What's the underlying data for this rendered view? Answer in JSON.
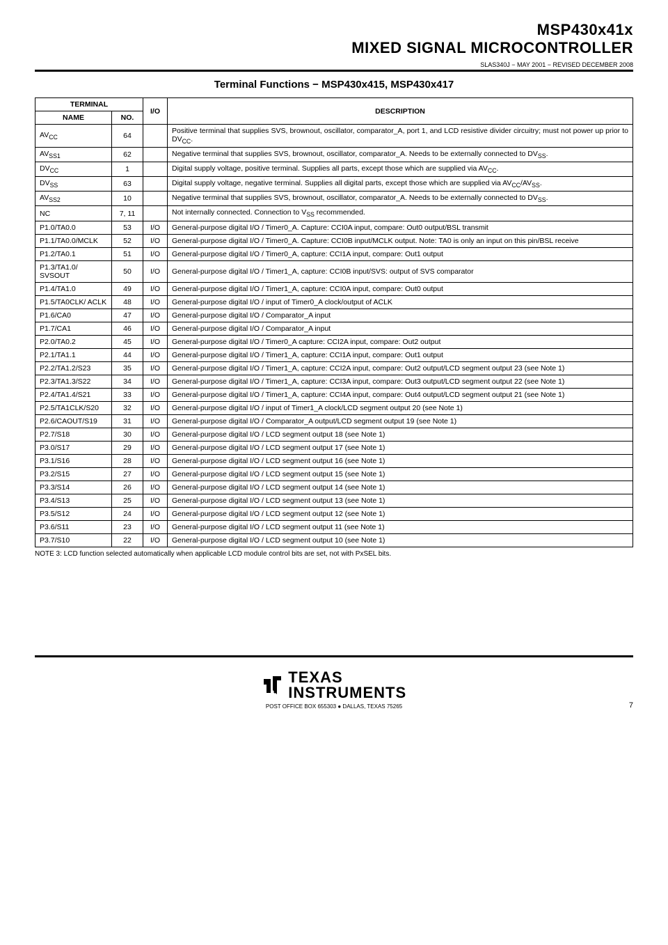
{
  "header": {
    "line1": "MSP430x41x",
    "line2": "MIXED SIGNAL MICROCONTROLLER",
    "revision": "SLAS340J − MAY 2001 − REVISED DECEMBER 2008"
  },
  "sectionTitle": "Terminal Functions − MSP430x415, MSP430x417",
  "tableHeaders": {
    "terminalGroup": "TERMINAL",
    "name": "NAME",
    "no": "NO.",
    "io": "I/O",
    "description": "DESCRIPTION"
  },
  "rows": [
    {
      "name": "AV<sub>CC</sub>",
      "no": "64",
      "io": "",
      "desc": "Positive terminal that supplies SVS, brownout, oscillator, comparator_A, port 1, and LCD resistive divider circuitry; must not power up prior to DV<sub>CC</sub>."
    },
    {
      "name": "AV<sub>SS1</sub>",
      "no": "62",
      "io": "",
      "desc": "Negative terminal that supplies SVS, brownout, oscillator, comparator_A. Needs to be externally connected to DV<sub>SS</sub>."
    },
    {
      "name": "DV<sub>CC</sub>",
      "no": "1",
      "io": "",
      "desc": "Digital supply voltage, positive terminal. Supplies all parts, except those which are supplied via AV<sub>CC</sub>."
    },
    {
      "name": "DV<sub>SS</sub>",
      "no": "63",
      "io": "",
      "desc": "Digital supply voltage, negative terminal. Supplies all digital parts, except those which are supplied via AV<sub>CC</sub>/AV<sub>SS</sub>."
    },
    {
      "name": "AV<sub>SS2</sub>",
      "no": "10",
      "io": "",
      "desc": "Negative terminal that supplies SVS, brownout, oscillator, comparator_A. Needs to be externally connected to DV<sub>SS</sub>."
    },
    {
      "name": "NC",
      "no": "7, 11",
      "io": "",
      "desc": "Not internally connected. Connection to V<sub>SS</sub> recommended."
    },
    {
      "name": "P1.0/TA0.0",
      "no": "53",
      "io": "I/O",
      "desc": "General-purpose digital I/O / Timer0_A. Capture: CCI0A input, compare: Out0 output/BSL transmit"
    },
    {
      "name": "P1.1/TA0.0/MCLK",
      "no": "52",
      "io": "I/O",
      "desc": "General-purpose digital I/O / Timer0_A. Capture: CCI0B input/MCLK output. Note: TA0 is only an input on this pin/BSL receive"
    },
    {
      "name": "P1.2/TA0.1",
      "no": "51",
      "io": "I/O",
      "desc": "General-purpose digital I/O / Timer0_A, capture: CCI1A input, compare: Out1 output"
    },
    {
      "name": "P1.3/TA1.0/ SVSOUT",
      "no": "50",
      "io": "I/O",
      "desc": "General-purpose digital I/O / Timer1_A, capture: CCI0B input/SVS: output of SVS comparator"
    },
    {
      "name": "P1.4/TA1.0",
      "no": "49",
      "io": "I/O",
      "desc": "General-purpose digital I/O / Timer1_A, capture: CCI0A input, compare: Out0 output"
    },
    {
      "name": "P1.5/TA0CLK/ ACLK",
      "no": "48",
      "io": "I/O",
      "desc": "General-purpose digital I/O / input of Timer0_A clock/output of ACLK"
    },
    {
      "name": "P1.6/CA0",
      "no": "47",
      "io": "I/O",
      "desc": "General-purpose digital I/O / Comparator_A input"
    },
    {
      "name": "P1.7/CA1",
      "no": "46",
      "io": "I/O",
      "desc": "General-purpose digital I/O / Comparator_A input"
    },
    {
      "name": "P2.0/TA0.2",
      "no": "45",
      "io": "I/O",
      "desc": "General-purpose digital I/O / Timer0_A capture: CCI2A input, compare: Out2 output"
    },
    {
      "name": "P2.1/TA1.1",
      "no": "44",
      "io": "I/O",
      "desc": "General-purpose digital I/O / Timer1_A, capture: CCI1A input, compare: Out1 output"
    },
    {
      "name": "P2.2/TA1.2/S23",
      "no": "35",
      "io": "I/O",
      "desc": "General-purpose digital I/O / Timer1_A, capture: CCI2A input, compare: Out2 output/LCD segment output 23 (see Note 1)"
    },
    {
      "name": "P2.3/TA1.3/S22",
      "no": "34",
      "io": "I/O",
      "desc": "General-purpose digital I/O / Timer1_A, capture: CCI3A input, compare: Out3 output/LCD segment output 22 (see Note 1)"
    },
    {
      "name": "P2.4/TA1.4/S21",
      "no": "33",
      "io": "I/O",
      "desc": "General-purpose digital I/O / Timer1_A, capture: CCI4A input, compare: Out4 output/LCD segment output 21 (see Note 1)"
    },
    {
      "name": "P2.5/TA1CLK/S20",
      "no": "32",
      "io": "I/O",
      "desc": "General-purpose digital I/O / input of Timer1_A clock/LCD segment output 20 (see Note 1)"
    },
    {
      "name": "P2.6/CAOUT/S19",
      "no": "31",
      "io": "I/O",
      "desc": "General-purpose digital I/O / Comparator_A output/LCD segment output 19 (see Note 1)"
    },
    {
      "name": "P2.7/S18",
      "no": "30",
      "io": "I/O",
      "desc": "General-purpose digital I/O / LCD segment output 18 (see Note 1)"
    },
    {
      "name": "P3.0/S17",
      "no": "29",
      "io": "I/O",
      "desc": "General-purpose digital I/O / LCD segment output 17 (see Note 1)"
    },
    {
      "name": "P3.1/S16",
      "no": "28",
      "io": "I/O",
      "desc": "General-purpose digital I/O / LCD segment output 16 (see Note 1)"
    },
    {
      "name": "P3.2/S15",
      "no": "27",
      "io": "I/O",
      "desc": "General-purpose digital I/O / LCD segment output 15 (see Note 1)"
    },
    {
      "name": "P3.3/S14",
      "no": "26",
      "io": "I/O",
      "desc": "General-purpose digital I/O / LCD segment output 14 (see Note 1)"
    },
    {
      "name": "P3.4/S13",
      "no": "25",
      "io": "I/O",
      "desc": "General-purpose digital I/O / LCD segment output 13 (see Note 1)"
    },
    {
      "name": "P3.5/S12",
      "no": "24",
      "io": "I/O",
      "desc": "General-purpose digital I/O / LCD segment output 12 (see Note 1)"
    },
    {
      "name": "P3.6/S11",
      "no": "23",
      "io": "I/O",
      "desc": "General-purpose digital I/O / LCD segment output 11 (see Note 1)"
    },
    {
      "name": "P3.7/S10",
      "no": "22",
      "io": "I/O",
      "desc": "General-purpose digital I/O / LCD segment output 10 (see Note 1)"
    }
  ],
  "note": "NOTE 3:   LCD function selected automatically when applicable LCD module control bits are set, not with PxSEL bits.",
  "footer": {
    "logoTexas": "TEXAS",
    "logoInstruments": "INSTRUMENTS",
    "postOffice": "POST OFFICE BOX 655303 ● DALLAS, TEXAS 75265",
    "pageNumber": "7"
  }
}
